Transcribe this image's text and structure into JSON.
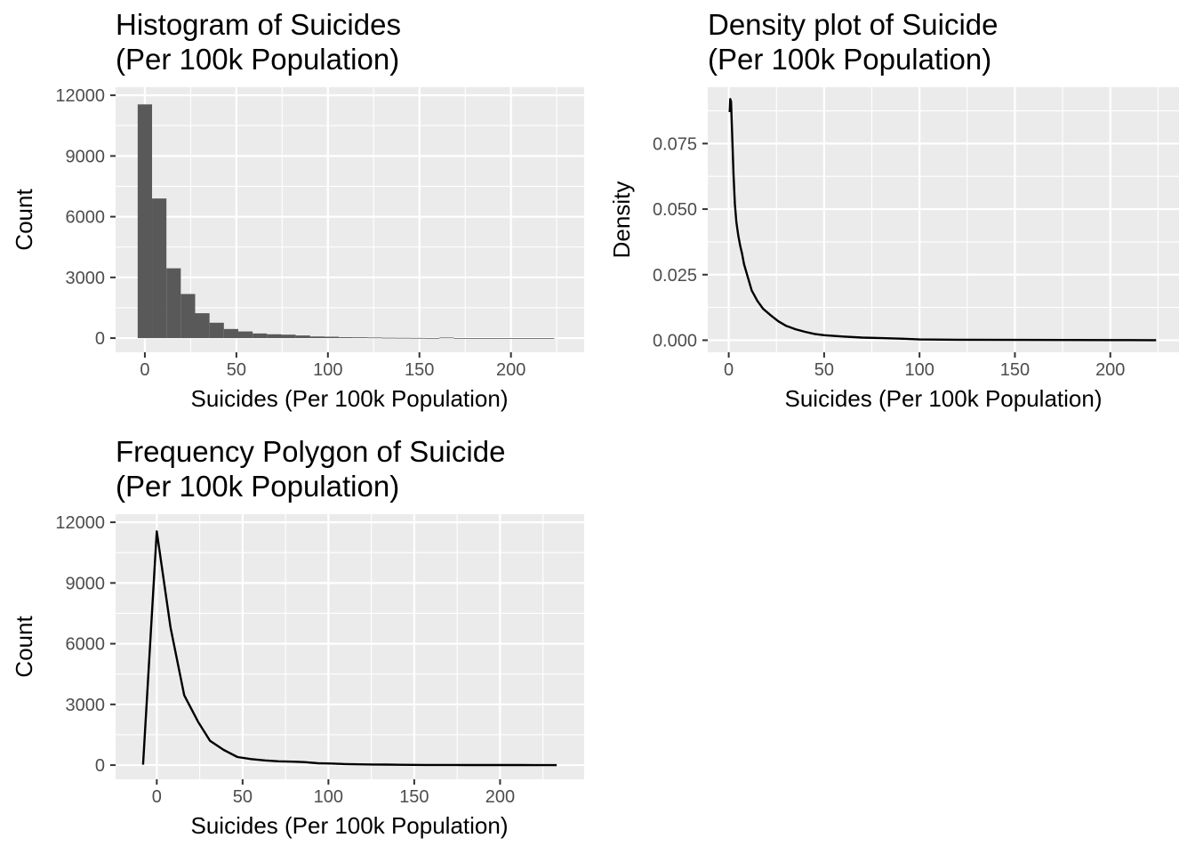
{
  "chart_data": [
    {
      "type": "histogram",
      "title": "Histogram of Suicides",
      "subtitle": "(Per 100k Population)",
      "xlabel": "Suicides (Per 100k Population)",
      "ylabel": "Count",
      "xlim": [
        -16,
        240
      ],
      "ylim": [
        -700,
        12400
      ],
      "x_ticks": [
        0,
        50,
        100,
        150,
        200
      ],
      "y_ticks": [
        0,
        3000,
        6000,
        9000,
        12000
      ],
      "bin_width": 7.85,
      "bin_start": -3.925,
      "values": [
        11550,
        6900,
        3450,
        2180,
        1230,
        760,
        450,
        330,
        230,
        190,
        170,
        130,
        80,
        70,
        45,
        40,
        30,
        20,
        15,
        10,
        5,
        30,
        4,
        3,
        2,
        2,
        1,
        1,
        1
      ],
      "grid": true,
      "colors": {
        "bar": "#595959",
        "panel": "#ebebeb"
      }
    },
    {
      "type": "line",
      "title": "Density plot of Suicide",
      "subtitle": "(Per 100k Population)",
      "xlabel": "Suicides (Per 100k Population)",
      "ylabel": "Density",
      "xlim": [
        -11,
        236
      ],
      "ylim": [
        -0.0046,
        0.0965
      ],
      "x_ticks": [
        0,
        50,
        100,
        150,
        200
      ],
      "y_ticks": [
        0,
        0.025,
        0.05,
        0.075
      ],
      "y_tick_labels": [
        "0.000",
        "0.025",
        "0.050",
        "0.075"
      ],
      "x": [
        0.5,
        0.8,
        1.2,
        1.6,
        2.0,
        2.5,
        3.2,
        4,
        5,
        6,
        7,
        8,
        10,
        12,
        15,
        18,
        22,
        26,
        30,
        35,
        40,
        45,
        50,
        60,
        70,
        80,
        90,
        100,
        120,
        150,
        200,
        224
      ],
      "y": [
        0.087,
        0.092,
        0.091,
        0.083,
        0.074,
        0.063,
        0.052,
        0.045,
        0.04,
        0.036,
        0.033,
        0.029,
        0.024,
        0.019,
        0.015,
        0.012,
        0.0095,
        0.0072,
        0.0055,
        0.0042,
        0.0032,
        0.0024,
        0.0019,
        0.0014,
        0.001,
        0.0008,
        0.0006,
        0.0003,
        0.0002,
        0.0001,
        5e-05,
        3e-05
      ],
      "grid": true
    },
    {
      "type": "line",
      "title": "Frequency Polygon of Suicide",
      "subtitle": "(Per 100k Population)",
      "xlabel": "Suicides (Per 100k Population)",
      "ylabel": "Count",
      "xlim": [
        -24,
        249
      ],
      "ylim": [
        -700,
        12400
      ],
      "x_ticks": [
        0,
        50,
        100,
        150,
        200
      ],
      "y_ticks": [
        0,
        3000,
        6000,
        9000,
        12000
      ],
      "x": [
        -8,
        0,
        8,
        16,
        24,
        31,
        39,
        47,
        55,
        63,
        71,
        79,
        86,
        94,
        102,
        110,
        118,
        126,
        134,
        141,
        149,
        157,
        165,
        173,
        181,
        189,
        196,
        204,
        212,
        220,
        233
      ],
      "y": [
        20,
        11550,
        6800,
        3450,
        2150,
        1200,
        750,
        400,
        300,
        230,
        190,
        170,
        150,
        90,
        80,
        50,
        40,
        30,
        25,
        15,
        10,
        8,
        7,
        6,
        5,
        4,
        3,
        2,
        2,
        1,
        0
      ],
      "grid": true
    }
  ]
}
